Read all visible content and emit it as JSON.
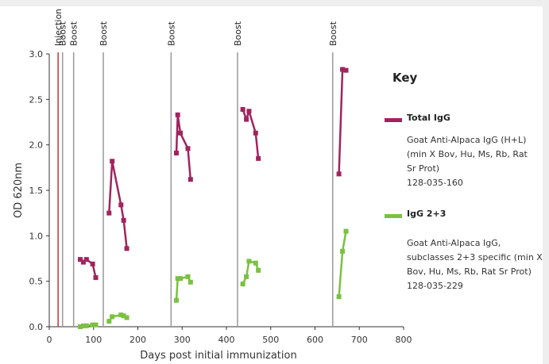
{
  "chart_data": {
    "type": "line",
    "xlabel": "Days post initial immunization",
    "ylabel": "OD 620nm",
    "xlim": [
      0,
      800
    ],
    "ylim": [
      0,
      3.0
    ],
    "xticks": [
      0,
      100,
      200,
      300,
      400,
      500,
      600,
      700,
      800
    ],
    "yticks": [
      "0.0",
      "0.5",
      "1.0",
      "1.5",
      "2.0",
      "2.5",
      "3.0"
    ],
    "grid": false,
    "legend_position": "right",
    "events": [
      {
        "label": "Injection",
        "day": 20,
        "color": "#cc3333"
      },
      {
        "label": "Boost",
        "day": 30,
        "color": "#999999"
      },
      {
        "label": "Boost",
        "day": 55,
        "color": "#999999"
      },
      {
        "label": "Boost",
        "day": 122,
        "color": "#999999"
      },
      {
        "label": "Boost",
        "day": 275,
        "color": "#999999"
      },
      {
        "label": "Boost",
        "day": 425,
        "color": "#999999"
      },
      {
        "label": "Boost",
        "day": 640,
        "color": "#999999"
      }
    ],
    "series": [
      {
        "name": "Total IgG",
        "color": "#a0245e",
        "segments": [
          [
            [
              70,
              0.74
            ],
            [
              77,
              0.71
            ],
            [
              84,
              0.74
            ],
            [
              98,
              0.69
            ],
            [
              105,
              0.54
            ]
          ],
          [
            [
              135,
              1.25
            ],
            [
              142,
              1.82
            ],
            [
              162,
              1.34
            ],
            [
              168,
              1.17
            ],
            [
              175,
              0.86
            ]
          ],
          [
            [
              287,
              1.91
            ],
            [
              290,
              2.33
            ],
            [
              296,
              2.13
            ],
            [
              313,
              1.96
            ],
            [
              319,
              1.62
            ]
          ],
          [
            [
              437,
              2.39
            ],
            [
              445,
              2.28
            ],
            [
              451,
              2.37
            ],
            [
              466,
              2.13
            ],
            [
              472,
              1.85
            ]
          ],
          [
            [
              654,
              1.68
            ],
            [
              662,
              2.83
            ],
            [
              670,
              2.82
            ]
          ]
        ]
      },
      {
        "name": "IgG 2+3",
        "color": "#7ac142",
        "segments": [
          [
            [
              70,
              0.0
            ],
            [
              77,
              0.01
            ],
            [
              84,
              0.01
            ],
            [
              98,
              0.02
            ],
            [
              105,
              0.02
            ]
          ],
          [
            [
              135,
              0.06
            ],
            [
              142,
              0.11
            ],
            [
              162,
              0.13
            ],
            [
              168,
              0.12
            ],
            [
              175,
              0.1
            ]
          ],
          [
            [
              287,
              0.29
            ],
            [
              290,
              0.53
            ],
            [
              296,
              0.53
            ],
            [
              313,
              0.55
            ],
            [
              319,
              0.49
            ]
          ],
          [
            [
              437,
              0.47
            ],
            [
              445,
              0.55
            ],
            [
              451,
              0.72
            ],
            [
              466,
              0.7
            ],
            [
              472,
              0.62
            ]
          ],
          [
            [
              654,
              0.33
            ],
            [
              662,
              0.83
            ],
            [
              670,
              1.05
            ]
          ]
        ]
      }
    ]
  },
  "legend": {
    "title": "Key",
    "items": [
      {
        "label": "Total IgG",
        "color": "#a0245e",
        "description_lines": [
          "Goat Anti-Alpaca IgG (H+L)",
          "(min X Bov, Hu, Ms, Rb, Rat",
          "Sr Prot)",
          "128-035-160"
        ]
      },
      {
        "label": "IgG 2+3",
        "color": "#7ac142",
        "description_lines": [
          "Goat Anti-Alpaca IgG,",
          "subclasses 2+3 specific (min X",
          "Bov, Hu, Ms, Rb, Rat Sr Prot)",
          "128-035-229"
        ]
      }
    ]
  }
}
